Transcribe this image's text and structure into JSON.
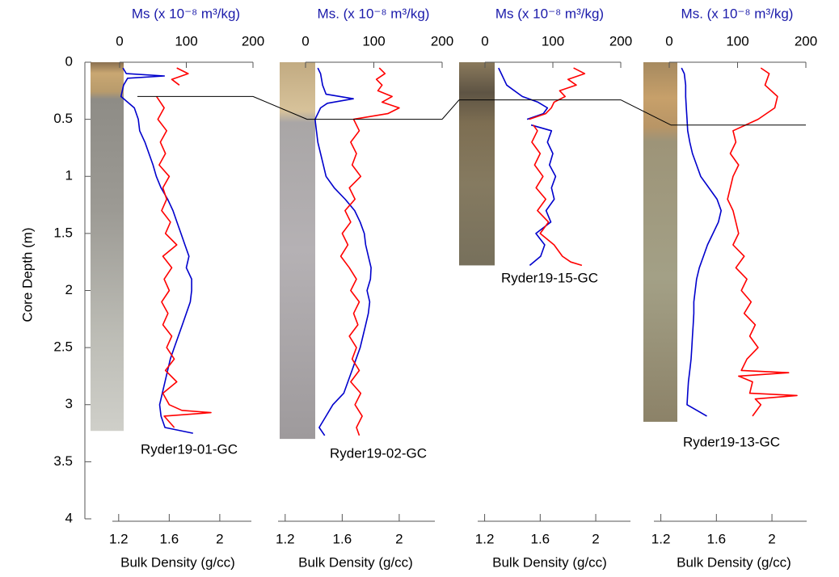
{
  "chart_data": [
    {
      "type": "line",
      "title": "Ryder19-01-GC",
      "ylabel": "Core Depth (m)",
      "ylim": [
        0,
        4
      ],
      "yticks": [
        0,
        0.5,
        1,
        1.5,
        2,
        2.5,
        3,
        3.5,
        4
      ],
      "xlabel_top": "Ms (x 10⁻⁸ m³/kg)",
      "xlim": [
        0,
        200
      ],
      "xticks": [
        0,
        100,
        200
      ],
      "xlabel_bottom": "Bulk Density (g/cc)",
      "x2lim": [
        1.15,
        2.25
      ],
      "x2ticks": [
        1.2,
        1.6,
        2
      ],
      "core_bottom": 3.23,
      "tie_depth": 0.3,
      "series": [
        {
          "color": "#0000cc",
          "axis": "top",
          "depth": [
            0.05,
            0.1,
            0.12,
            0.14,
            0.2,
            0.3,
            0.4,
            0.5,
            0.6,
            0.7,
            0.8,
            0.9,
            1.0,
            1.1,
            1.2,
            1.3,
            1.4,
            1.5,
            1.6,
            1.7,
            1.8,
            1.9,
            2.0,
            2.1,
            2.2,
            2.3,
            2.4,
            2.5,
            2.6,
            2.7,
            2.8,
            2.9,
            3.0,
            3.1,
            3.2,
            3.25
          ],
          "values": [
            5,
            10,
            67,
            12,
            6,
            2,
            22,
            28,
            30,
            38,
            44,
            50,
            55,
            62,
            72,
            80,
            86,
            92,
            98,
            104,
            100,
            108,
            108,
            106,
            100,
            94,
            88,
            82,
            76,
            72,
            68,
            64,
            60,
            62,
            68,
            110
          ]
        },
        {
          "color": "#ff0000",
          "axis": "bottom",
          "depth": [
            0.05,
            0.1,
            0.15,
            0.2,
            0.25,
            0.3,
            0.4,
            0.5,
            0.6,
            0.7,
            0.8,
            0.9,
            1.0,
            1.1,
            1.2,
            1.3,
            1.4,
            1.5,
            1.6,
            1.7,
            1.8,
            1.9,
            2.0,
            2.1,
            2.2,
            2.3,
            2.4,
            2.5,
            2.6,
            2.7,
            2.8,
            2.9,
            3.0,
            3.05,
            3.07,
            3.1,
            3.2
          ],
          "values": [
            1.66,
            1.75,
            1.62,
            1.68,
            null,
            1.5,
            1.56,
            1.51,
            1.58,
            1.53,
            1.57,
            1.52,
            1.6,
            1.55,
            1.58,
            1.54,
            1.61,
            1.57,
            1.66,
            1.55,
            1.62,
            1.56,
            1.6,
            1.54,
            1.59,
            1.55,
            1.62,
            1.58,
            1.64,
            1.57,
            1.66,
            1.55,
            1.6,
            1.7,
            1.93,
            1.56,
            1.64
          ]
        }
      ]
    },
    {
      "type": "line",
      "title": "Ryder19-02-GC",
      "xlabel_top": "Ms. (x 10⁻⁸ m³/kg)",
      "xlim": [
        0,
        200
      ],
      "xticks": [
        0,
        100,
        200
      ],
      "xlabel_bottom": "Bulk Density (g/cc)",
      "x2lim": [
        1.15,
        2.25
      ],
      "x2ticks": [
        1.2,
        1.6,
        2
      ],
      "core_bottom": 3.3,
      "tie_depth": 0.5,
      "series": [
        {
          "color": "#0000cc",
          "axis": "top",
          "depth": [
            0.05,
            0.1,
            0.2,
            0.28,
            0.32,
            0.36,
            0.4,
            0.5,
            0.6,
            0.7,
            0.8,
            0.9,
            1.0,
            1.1,
            1.2,
            1.3,
            1.4,
            1.5,
            1.6,
            1.7,
            1.8,
            1.9,
            2.0,
            2.1,
            2.2,
            2.3,
            2.4,
            2.5,
            2.6,
            2.7,
            2.8,
            2.9,
            3.0,
            3.1,
            3.2,
            3.27
          ],
          "values": [
            18,
            22,
            25,
            30,
            70,
            32,
            22,
            14,
            16,
            18,
            22,
            26,
            30,
            42,
            58,
            72,
            80,
            86,
            88,
            92,
            96,
            95,
            90,
            94,
            92,
            88,
            84,
            80,
            74,
            68,
            62,
            56,
            40,
            30,
            20,
            28
          ]
        },
        {
          "color": "#ff0000",
          "axis": "bottom",
          "depth": [
            0.05,
            0.1,
            0.15,
            0.2,
            0.25,
            0.3,
            0.35,
            0.4,
            0.45,
            0.5,
            0.6,
            0.7,
            0.8,
            0.9,
            1.0,
            1.1,
            1.2,
            1.3,
            1.4,
            1.5,
            1.6,
            1.7,
            1.8,
            1.9,
            2.0,
            2.1,
            2.2,
            2.3,
            2.4,
            2.5,
            2.6,
            2.7,
            2.8,
            2.9,
            3.0,
            3.1,
            3.2,
            3.27
          ],
          "values": [
            1.86,
            1.9,
            1.84,
            1.88,
            1.85,
            1.95,
            1.88,
            2.0,
            1.92,
            1.68,
            1.72,
            1.66,
            1.7,
            1.67,
            1.73,
            1.65,
            1.69,
            1.62,
            1.66,
            1.6,
            1.64,
            1.59,
            1.65,
            1.7,
            1.66,
            1.72,
            1.68,
            1.71,
            1.65,
            1.7,
            1.67,
            1.72,
            1.66,
            1.73,
            1.69,
            1.74,
            1.7,
            1.72
          ]
        }
      ]
    },
    {
      "type": "line",
      "title": "Ryder19-15-GC",
      "xlabel_top": "Ms (x 10⁻⁸ m³/kg)",
      "xlim": [
        0,
        200
      ],
      "xticks": [
        0,
        100,
        200
      ],
      "xlabel_bottom": "Bulk Density (g/cc)",
      "x2lim": [
        1.15,
        2.25
      ],
      "x2ticks": [
        1.2,
        1.6,
        2
      ],
      "core_bottom": 1.78,
      "tie_depth": 0.33,
      "series": [
        {
          "color": "#0000cc",
          "axis": "top",
          "depth": [
            0.05,
            0.1,
            0.2,
            0.3,
            0.35,
            0.4,
            0.45,
            0.5,
            0.52,
            0.55,
            0.6,
            0.7,
            0.8,
            0.9,
            1.0,
            1.1,
            1.2,
            1.3,
            1.4,
            1.5,
            1.6,
            1.7,
            1.78
          ],
          "values": [
            20,
            24,
            32,
            55,
            78,
            92,
            86,
            62,
            null,
            68,
            98,
            92,
            100,
            95,
            104,
            98,
            102,
            90,
            97,
            75,
            88,
            82,
            66
          ]
        },
        {
          "color": "#ff0000",
          "axis": "bottom",
          "depth": [
            0.05,
            0.1,
            0.15,
            0.2,
            0.25,
            0.3,
            0.35,
            0.4,
            0.45,
            0.5,
            0.52,
            0.55,
            0.6,
            0.7,
            0.8,
            0.9,
            1.0,
            1.1,
            1.2,
            1.3,
            1.4,
            1.5,
            1.6,
            1.7,
            1.75,
            1.78
          ],
          "values": [
            1.84,
            1.92,
            1.8,
            1.86,
            1.74,
            1.78,
            1.7,
            1.68,
            1.64,
            1.52,
            null,
            1.55,
            1.58,
            1.54,
            1.6,
            1.56,
            1.62,
            1.57,
            1.64,
            1.58,
            1.66,
            1.6,
            1.7,
            1.76,
            1.82,
            1.9
          ]
        }
      ]
    },
    {
      "type": "line",
      "title": "Ryder19-13-GC",
      "xlabel_top": "Ms. (x 10⁻⁸ m³/kg)",
      "xlim": [
        0,
        200
      ],
      "xticks": [
        0,
        100,
        200
      ],
      "xlabel_bottom": "Bulk Density (g/cc)",
      "x2lim": [
        1.15,
        2.25
      ],
      "x2ticks": [
        1.2,
        1.6,
        2
      ],
      "core_bottom": 3.15,
      "tie_depth": 0.55,
      "series": [
        {
          "color": "#0000cc",
          "axis": "top",
          "depth": [
            0.05,
            0.1,
            0.2,
            0.3,
            0.4,
            0.5,
            0.6,
            0.7,
            0.8,
            0.9,
            1.0,
            1.1,
            1.2,
            1.3,
            1.4,
            1.5,
            1.6,
            1.7,
            1.8,
            1.9,
            2.0,
            2.1,
            2.2,
            2.3,
            2.4,
            2.5,
            2.6,
            2.7,
            2.8,
            2.9,
            3.0,
            3.1
          ],
          "values": [
            18,
            22,
            24,
            24,
            25,
            26,
            27,
            30,
            34,
            40,
            46,
            58,
            70,
            76,
            72,
            64,
            56,
            50,
            44,
            40,
            38,
            36,
            36,
            35,
            34,
            33,
            32,
            30,
            28,
            27,
            26,
            55
          ]
        },
        {
          "color": "#ff0000",
          "axis": "bottom",
          "depth": [
            0.05,
            0.1,
            0.2,
            0.3,
            0.4,
            0.5,
            0.6,
            0.7,
            0.8,
            0.9,
            1.0,
            1.1,
            1.2,
            1.3,
            1.4,
            1.5,
            1.6,
            1.7,
            1.8,
            1.9,
            2.0,
            2.1,
            2.2,
            2.3,
            2.4,
            2.5,
            2.6,
            2.7,
            2.72,
            2.75,
            2.8,
            2.9,
            2.92,
            2.95,
            3.0,
            3.1
          ],
          "values": [
            1.92,
            1.98,
            1.95,
            2.04,
            2.02,
            1.9,
            1.72,
            1.74,
            1.7,
            1.76,
            1.72,
            1.7,
            1.68,
            1.72,
            1.74,
            1.76,
            1.72,
            1.8,
            1.74,
            1.82,
            1.78,
            1.85,
            1.8,
            1.88,
            1.84,
            1.9,
            1.82,
            1.78,
            2.12,
            1.76,
            1.86,
            1.84,
            2.18,
            1.88,
            1.92,
            1.86
          ]
        }
      ]
    }
  ]
}
